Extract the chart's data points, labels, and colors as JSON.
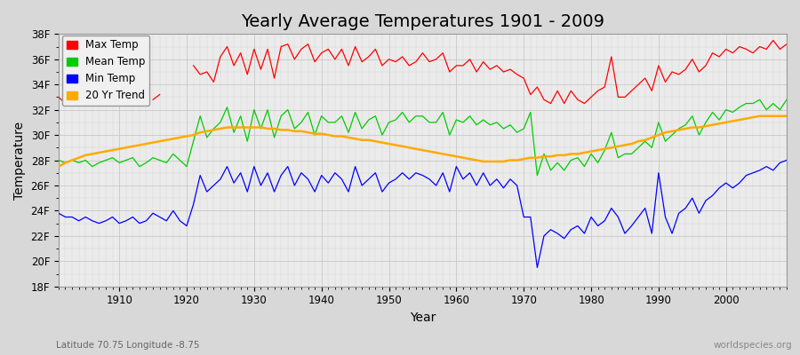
{
  "title": "Yearly Average Temperatures 1901 - 2009",
  "xlabel": "Year",
  "ylabel": "Temperature",
  "footnote_left": "Latitude 70.75 Longitude -8.75",
  "footnote_right": "worldspecies.org",
  "legend_labels": [
    "Max Temp",
    "Mean Temp",
    "Min Temp",
    "20 Yr Trend"
  ],
  "legend_colors": [
    "#ff0000",
    "#00cc00",
    "#0000ff",
    "#ffaa00"
  ],
  "years": [
    1901,
    1902,
    1903,
    1904,
    1905,
    1906,
    1907,
    1908,
    1909,
    1910,
    1911,
    1912,
    1913,
    1914,
    1915,
    1916,
    1917,
    1918,
    1919,
    1920,
    1921,
    1922,
    1923,
    1924,
    1925,
    1926,
    1927,
    1928,
    1929,
    1930,
    1931,
    1932,
    1933,
    1934,
    1935,
    1936,
    1937,
    1938,
    1939,
    1940,
    1941,
    1942,
    1943,
    1944,
    1945,
    1946,
    1947,
    1948,
    1949,
    1950,
    1951,
    1952,
    1953,
    1954,
    1955,
    1956,
    1957,
    1958,
    1959,
    1960,
    1961,
    1962,
    1963,
    1964,
    1965,
    1966,
    1967,
    1968,
    1969,
    1970,
    1971,
    1972,
    1973,
    1974,
    1975,
    1976,
    1977,
    1978,
    1979,
    1980,
    1981,
    1982,
    1983,
    1984,
    1985,
    1986,
    1987,
    1988,
    1989,
    1990,
    1991,
    1992,
    1993,
    1994,
    1995,
    1996,
    1997,
    1998,
    1999,
    2000,
    2001,
    2002,
    2003,
    2004,
    2005,
    2006,
    2007,
    2008,
    2009
  ],
  "max_temp_mask": [
    1,
    1,
    0,
    0,
    0,
    0,
    0,
    0,
    1,
    1,
    1,
    1,
    0,
    0,
    1,
    1,
    0,
    0,
    0,
    0,
    1,
    1,
    1,
    1,
    1,
    1,
    1,
    1,
    1,
    1,
    1,
    1,
    1,
    1,
    1,
    1,
    1,
    1,
    1,
    1,
    1,
    1,
    1,
    1,
    1,
    1,
    1,
    1,
    1,
    1,
    1,
    1,
    1,
    1,
    1,
    1,
    1,
    1,
    1,
    1,
    1,
    1,
    1,
    1,
    1,
    1,
    1,
    1,
    1,
    1,
    1,
    1,
    1,
    1,
    1,
    1,
    1,
    1,
    1,
    1,
    1,
    1,
    1,
    1,
    1,
    1,
    1,
    1,
    1,
    1,
    1,
    1,
    1,
    1,
    1,
    1,
    1,
    1,
    1,
    1,
    1,
    1,
    1,
    1,
    1,
    1,
    1,
    1,
    1
  ],
  "max_temp": [
    33.0,
    32.5,
    null,
    null,
    null,
    null,
    null,
    null,
    33.2,
    33.0,
    32.8,
    32.5,
    null,
    null,
    32.8,
    33.2,
    null,
    null,
    null,
    null,
    35.5,
    34.8,
    35.0,
    34.2,
    36.2,
    37.0,
    35.5,
    36.5,
    34.8,
    36.8,
    35.2,
    36.8,
    34.5,
    37.0,
    37.2,
    36.0,
    36.8,
    37.2,
    35.8,
    36.5,
    36.8,
    36.0,
    36.8,
    35.5,
    37.0,
    35.8,
    36.2,
    36.8,
    35.5,
    36.0,
    35.8,
    36.2,
    35.5,
    35.8,
    36.5,
    35.8,
    36.0,
    36.5,
    35.0,
    35.5,
    35.5,
    36.0,
    35.0,
    35.8,
    35.2,
    35.5,
    35.0,
    35.2,
    34.8,
    34.5,
    33.2,
    33.8,
    32.8,
    32.5,
    33.5,
    32.5,
    33.5,
    32.8,
    32.5,
    33.0,
    33.5,
    33.8,
    36.2,
    33.0,
    33.0,
    33.5,
    34.0,
    34.5,
    33.5,
    35.5,
    34.2,
    35.0,
    34.8,
    35.2,
    36.0,
    35.0,
    35.5,
    36.5,
    36.2,
    36.8,
    36.5,
    37.0,
    36.8,
    36.5,
    37.0,
    36.8,
    37.5,
    36.8,
    37.2
  ],
  "mean_temp": [
    28.0,
    27.8,
    28.0,
    27.8,
    28.0,
    27.5,
    27.8,
    28.0,
    28.2,
    27.8,
    28.0,
    28.2,
    27.5,
    27.8,
    28.2,
    28.0,
    27.8,
    28.5,
    28.0,
    27.5,
    29.5,
    31.5,
    29.8,
    30.5,
    31.0,
    32.2,
    30.2,
    31.5,
    29.5,
    32.0,
    30.5,
    32.0,
    29.8,
    31.5,
    32.0,
    30.5,
    31.0,
    31.8,
    30.0,
    31.5,
    31.0,
    31.0,
    31.5,
    30.2,
    31.8,
    30.5,
    31.2,
    31.5,
    30.0,
    31.0,
    31.2,
    31.8,
    31.0,
    31.5,
    31.5,
    31.0,
    31.0,
    31.8,
    30.0,
    31.2,
    31.0,
    31.5,
    30.8,
    31.2,
    30.8,
    31.0,
    30.5,
    30.8,
    30.2,
    30.5,
    31.8,
    26.8,
    28.5,
    27.2,
    27.8,
    27.2,
    28.0,
    28.2,
    27.5,
    28.5,
    27.8,
    28.8,
    30.2,
    28.2,
    28.5,
    28.5,
    29.0,
    29.5,
    29.0,
    31.0,
    29.5,
    30.0,
    30.5,
    30.8,
    31.5,
    30.0,
    31.0,
    31.8,
    31.2,
    32.0,
    31.8,
    32.2,
    32.5,
    32.5,
    32.8,
    32.0,
    32.5,
    32.0,
    32.8
  ],
  "min_temp": [
    23.8,
    23.5,
    23.5,
    23.2,
    23.5,
    23.2,
    23.0,
    23.2,
    23.5,
    23.0,
    23.2,
    23.5,
    23.0,
    23.2,
    23.8,
    23.5,
    23.2,
    24.0,
    23.2,
    22.8,
    24.5,
    26.8,
    25.5,
    26.0,
    26.5,
    27.5,
    26.2,
    27.0,
    25.5,
    27.5,
    26.0,
    27.0,
    25.5,
    26.8,
    27.5,
    26.0,
    27.0,
    26.5,
    25.5,
    26.8,
    26.2,
    27.0,
    26.5,
    25.5,
    27.5,
    26.0,
    26.5,
    27.0,
    25.5,
    26.2,
    26.5,
    27.0,
    26.5,
    27.0,
    26.8,
    26.5,
    26.0,
    27.0,
    25.5,
    27.5,
    26.5,
    27.0,
    26.0,
    27.0,
    26.0,
    26.5,
    25.8,
    26.5,
    26.0,
    23.5,
    23.5,
    19.5,
    22.0,
    22.5,
    22.2,
    21.8,
    22.5,
    22.8,
    22.2,
    23.5,
    22.8,
    23.2,
    24.2,
    23.5,
    22.2,
    22.8,
    23.5,
    24.2,
    22.2,
    27.0,
    23.5,
    22.2,
    23.8,
    24.2,
    25.0,
    23.8,
    24.8,
    25.2,
    25.8,
    26.2,
    25.8,
    26.2,
    26.8,
    27.0,
    27.2,
    27.5,
    27.2,
    27.8,
    28.0
  ],
  "trend": [
    27.5,
    27.8,
    28.0,
    28.2,
    28.4,
    28.5,
    28.6,
    28.7,
    28.8,
    28.9,
    29.0,
    29.1,
    29.2,
    29.3,
    29.4,
    29.5,
    29.6,
    29.7,
    29.8,
    29.9,
    30.0,
    30.2,
    30.3,
    30.4,
    30.5,
    30.6,
    30.6,
    30.6,
    30.6,
    30.6,
    30.6,
    30.5,
    30.5,
    30.4,
    30.4,
    30.3,
    30.3,
    30.2,
    30.1,
    30.1,
    30.0,
    29.9,
    29.9,
    29.8,
    29.7,
    29.6,
    29.6,
    29.5,
    29.4,
    29.3,
    29.2,
    29.1,
    29.0,
    28.9,
    28.8,
    28.7,
    28.6,
    28.5,
    28.4,
    28.3,
    28.2,
    28.1,
    28.0,
    27.9,
    27.9,
    27.9,
    27.9,
    28.0,
    28.0,
    28.1,
    28.2,
    28.2,
    28.3,
    28.3,
    28.4,
    28.4,
    28.5,
    28.5,
    28.6,
    28.7,
    28.8,
    28.9,
    29.0,
    29.1,
    29.2,
    29.3,
    29.5,
    29.6,
    29.8,
    30.0,
    30.2,
    30.3,
    30.4,
    30.5,
    30.6,
    30.6,
    30.7,
    30.8,
    30.9,
    31.0,
    31.1,
    31.2,
    31.3,
    31.4,
    31.5,
    31.5,
    31.5,
    31.5,
    31.5
  ],
  "ylim": [
    18,
    38
  ],
  "yticks": [
    18,
    20,
    22,
    24,
    26,
    28,
    30,
    32,
    34,
    36,
    38
  ],
  "ytick_labels": [
    "18F",
    "20F",
    "22F",
    "24F",
    "26F",
    "28F",
    "30F",
    "32F",
    "34F",
    "36F",
    "38F"
  ],
  "bg_color": "#d8d8d8",
  "plot_bg_color": "#ebebeb",
  "grid_color": "#c8c8c8",
  "title_fontsize": 14,
  "axis_label_fontsize": 10,
  "tick_fontsize": 8.5,
  "legend_fontsize": 8.5
}
